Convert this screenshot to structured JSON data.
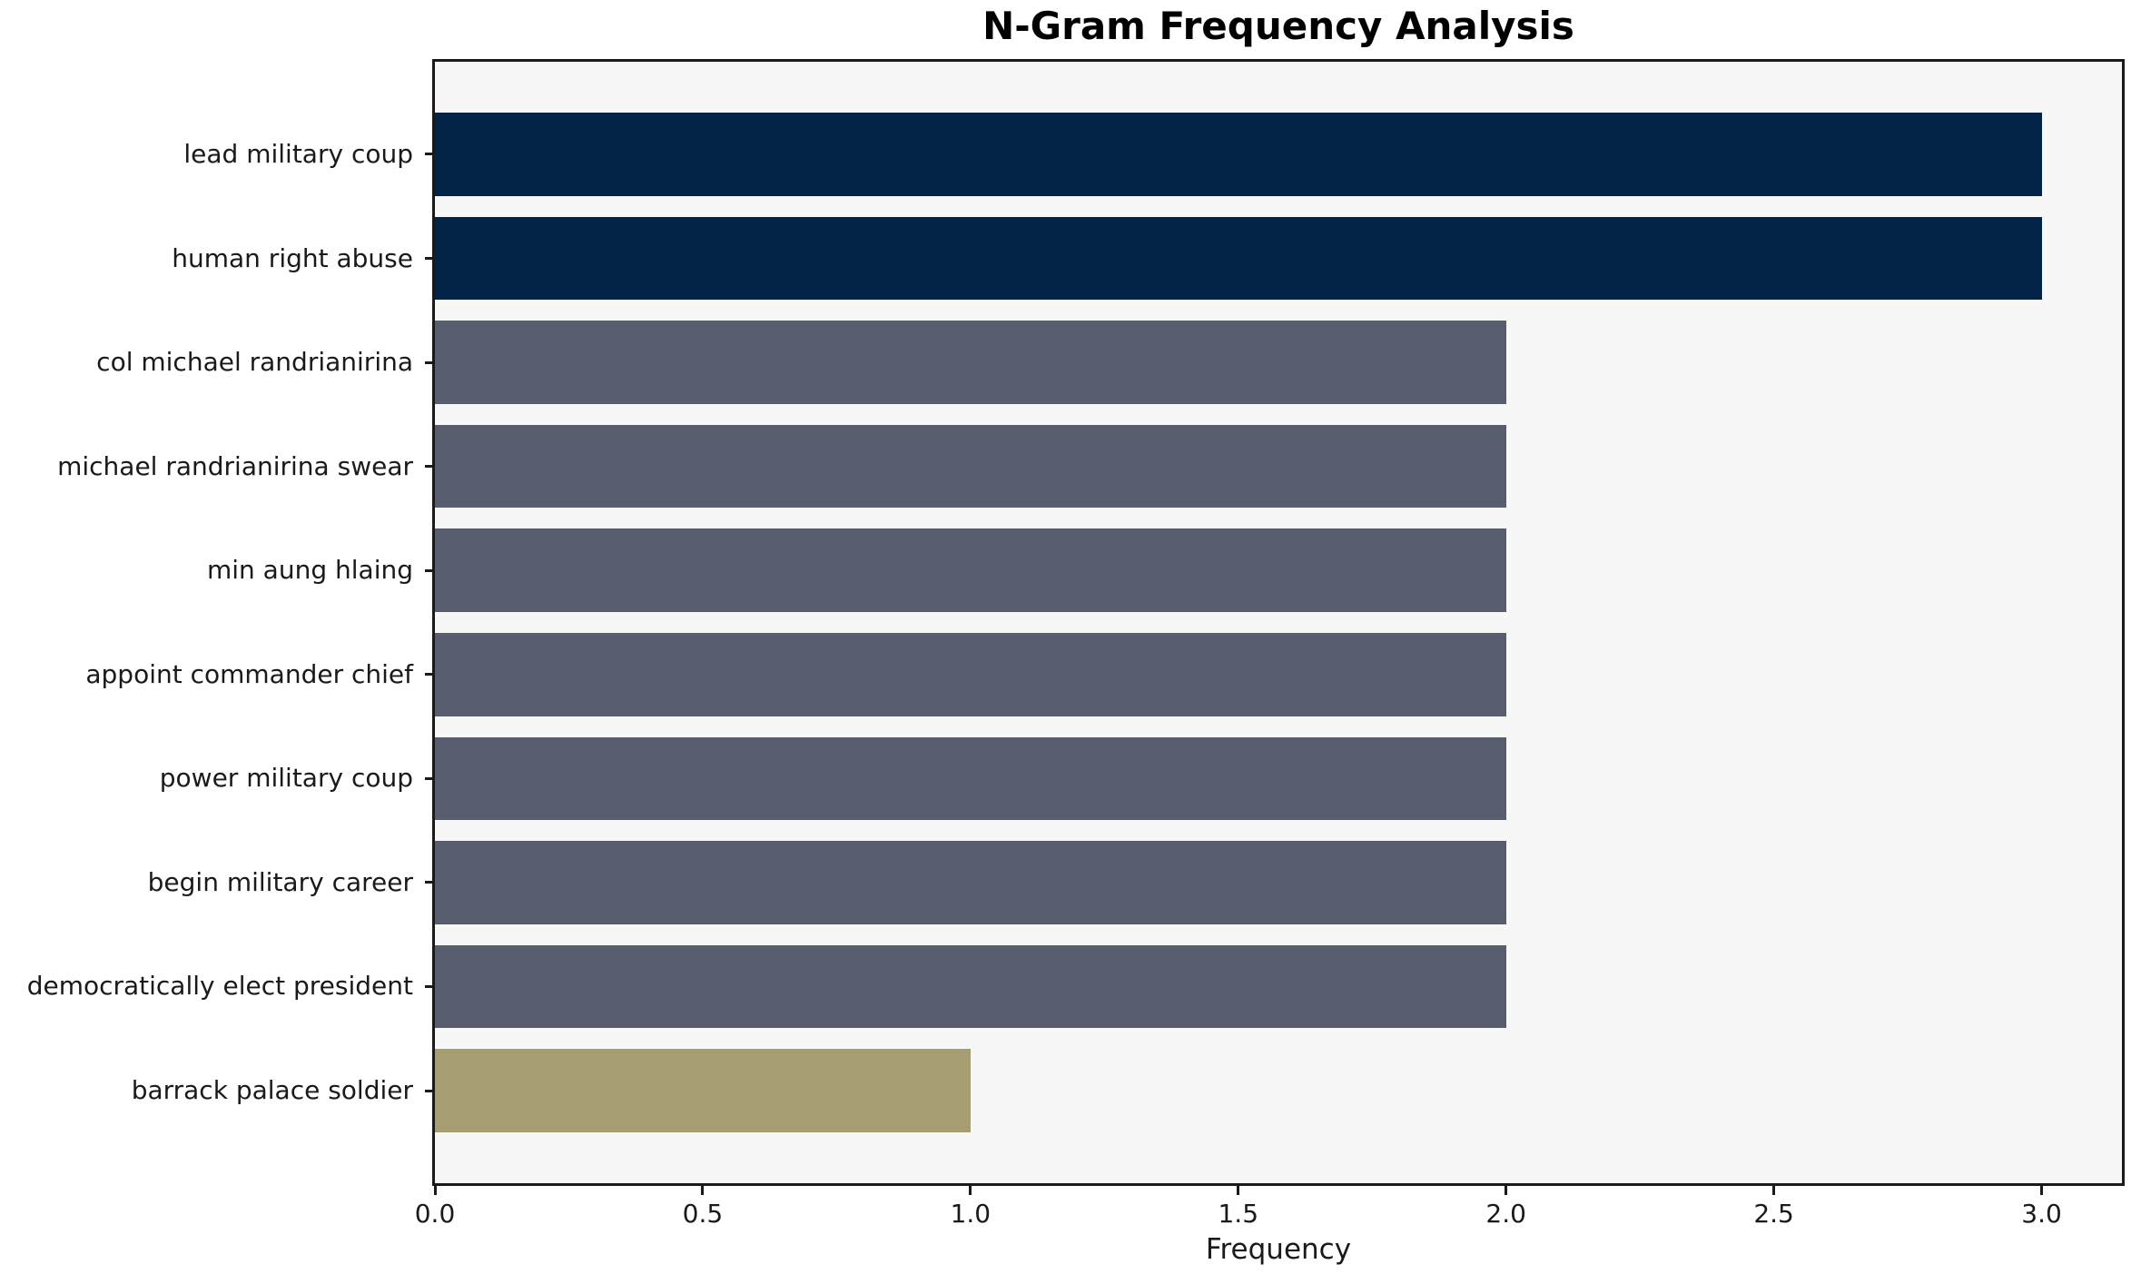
{
  "chart_data": {
    "type": "bar",
    "orientation": "horizontal",
    "title": "N-Gram Frequency Analysis",
    "xlabel": "Frequency",
    "ylabel": "",
    "categories": [
      "lead military coup",
      "human right abuse",
      "col michael randrianirina",
      "michael randrianirina swear",
      "min aung hlaing",
      "appoint commander chief",
      "power military coup",
      "begin military career",
      "democratically elect president",
      "barrack palace soldier"
    ],
    "values": [
      3,
      3,
      2,
      2,
      2,
      2,
      2,
      2,
      2,
      1
    ],
    "bar_colors": [
      "#032349",
      "#032349",
      "#575d6c",
      "#575d6c",
      "#575d6c",
      "#575d6c",
      "#575d6c",
      "#575d6c",
      "#575d6c",
      "#a69d72"
    ],
    "xticks": [
      0.0,
      0.5,
      1.0,
      1.5,
      2.0,
      2.5,
      3.0
    ],
    "xtick_labels": [
      "0.0",
      "0.5",
      "1.0",
      "1.5",
      "2.0",
      "2.5",
      "3.0"
    ],
    "xlim": [
      0,
      3.15
    ],
    "grid": false,
    "legend_position": "none",
    "colors": {
      "plot_background": "#f7f7f7",
      "figure_background": "#ffffff",
      "spine": "#1a1a1a",
      "text": "#1a1a1a"
    }
  }
}
